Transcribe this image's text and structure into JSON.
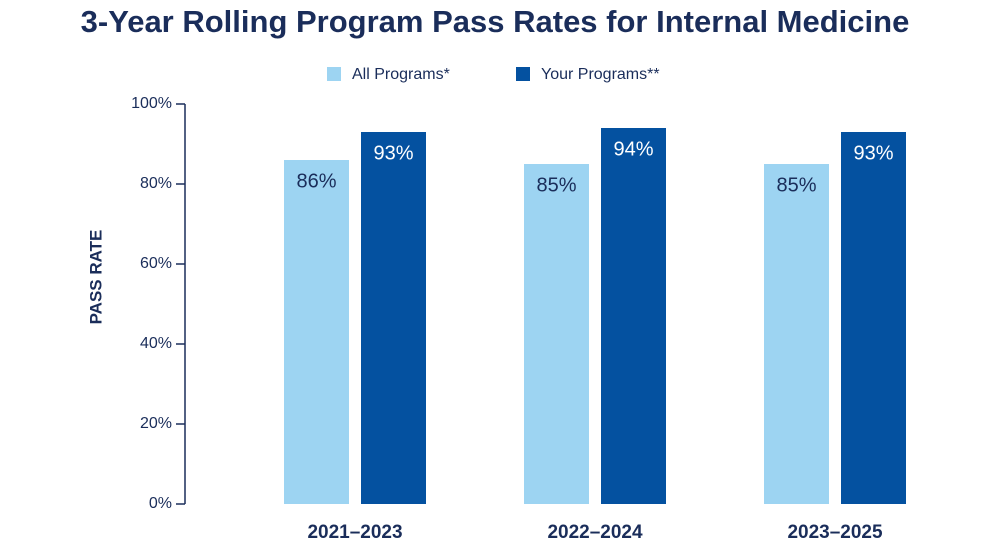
{
  "chart_data": {
    "type": "bar",
    "title": "3-Year Rolling Program Pass Rates for Internal Medicine",
    "y_label": "PASS RATE",
    "categories": [
      "2021–2023",
      "2022–2024",
      "2023–2025"
    ],
    "series": [
      {
        "name": "All Programs*",
        "color": "#9dd4f2",
        "values": [
          86,
          85,
          85
        ],
        "value_labels": [
          "86%",
          "85%",
          "85%"
        ]
      },
      {
        "name": "Your Programs**",
        "color": "#0451a0",
        "values": [
          93,
          94,
          93
        ],
        "value_labels": [
          "93%",
          "94%",
          "93%"
        ]
      }
    ],
    "ylim": [
      0,
      100
    ],
    "yticks": [
      {
        "value": 0,
        "label": "0%"
      },
      {
        "value": 20,
        "label": "20%"
      },
      {
        "value": 40,
        "label": "40%"
      },
      {
        "value": 60,
        "label": "60%"
      },
      {
        "value": 80,
        "label": "80%"
      },
      {
        "value": 100,
        "label": "100%"
      }
    ]
  }
}
